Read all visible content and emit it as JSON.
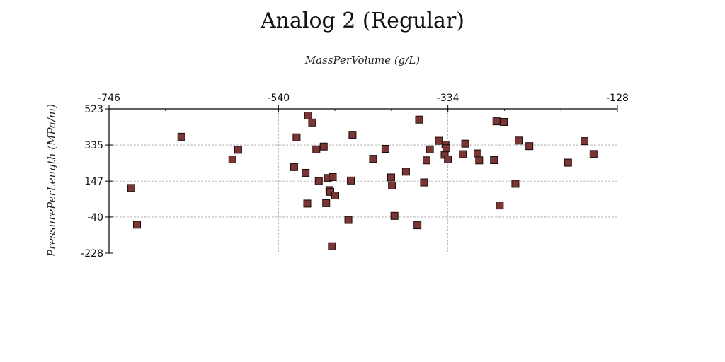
{
  "chart_data": {
    "type": "scatter",
    "title": "Analog 2 (Regular)",
    "xlabel": "MassPerVolume (g/L)",
    "ylabel": "PressurePerLength (MPa/m)",
    "x_axis_position": "top",
    "xlim": [
      -746,
      -128
    ],
    "ylim": [
      -228,
      523
    ],
    "xticks": [
      -746,
      -540,
      -334,
      -128
    ],
    "yticks": [
      -228,
      -40,
      147,
      335,
      523
    ],
    "grid": "dashed",
    "marker": "square",
    "colors": {
      "marker_fill": "#7a3535",
      "marker_stroke": "#1a0a0a",
      "grid": "#aaaaaa",
      "axis": "#000000"
    },
    "points": [
      {
        "x": -719,
        "y": 111
      },
      {
        "x": -712,
        "y": -80
      },
      {
        "x": -658,
        "y": 378
      },
      {
        "x": -596,
        "y": 260
      },
      {
        "x": -589,
        "y": 310
      },
      {
        "x": -521,
        "y": 220
      },
      {
        "x": -518,
        "y": 375
      },
      {
        "x": -507,
        "y": 190
      },
      {
        "x": -505,
        "y": 30
      },
      {
        "x": -504,
        "y": 488
      },
      {
        "x": -499,
        "y": 452
      },
      {
        "x": -494,
        "y": 312
      },
      {
        "x": -491,
        "y": 147
      },
      {
        "x": -485,
        "y": 327
      },
      {
        "x": -482,
        "y": 32
      },
      {
        "x": -480,
        "y": 163
      },
      {
        "x": -478,
        "y": 100
      },
      {
        "x": -477,
        "y": 91
      },
      {
        "x": -475,
        "y": -192
      },
      {
        "x": -474,
        "y": 168
      },
      {
        "x": -471,
        "y": 72
      },
      {
        "x": -455,
        "y": -55
      },
      {
        "x": -452,
        "y": 150
      },
      {
        "x": -450,
        "y": 388
      },
      {
        "x": -425,
        "y": 263
      },
      {
        "x": -410,
        "y": 315
      },
      {
        "x": -403,
        "y": 166
      },
      {
        "x": -402,
        "y": 124
      },
      {
        "x": -399,
        "y": -34
      },
      {
        "x": -385,
        "y": 196
      },
      {
        "x": -371,
        "y": -83
      },
      {
        "x": -369,
        "y": 467
      },
      {
        "x": -363,
        "y": 140
      },
      {
        "x": -360,
        "y": 255
      },
      {
        "x": -356,
        "y": 312
      },
      {
        "x": -345,
        "y": 357
      },
      {
        "x": -338,
        "y": 284
      },
      {
        "x": -337,
        "y": 337
      },
      {
        "x": -336,
        "y": 318
      },
      {
        "x": -334,
        "y": 260
      },
      {
        "x": -316,
        "y": 287
      },
      {
        "x": -313,
        "y": 342
      },
      {
        "x": -298,
        "y": 291
      },
      {
        "x": -296,
        "y": 255
      },
      {
        "x": -278,
        "y": 256
      },
      {
        "x": -275,
        "y": 458
      },
      {
        "x": -271,
        "y": 20
      },
      {
        "x": -266,
        "y": 455
      },
      {
        "x": -252,
        "y": 133
      },
      {
        "x": -248,
        "y": 358
      },
      {
        "x": -235,
        "y": 329
      },
      {
        "x": -188,
        "y": 243
      },
      {
        "x": -168,
        "y": 355
      },
      {
        "x": -157,
        "y": 288
      }
    ]
  }
}
